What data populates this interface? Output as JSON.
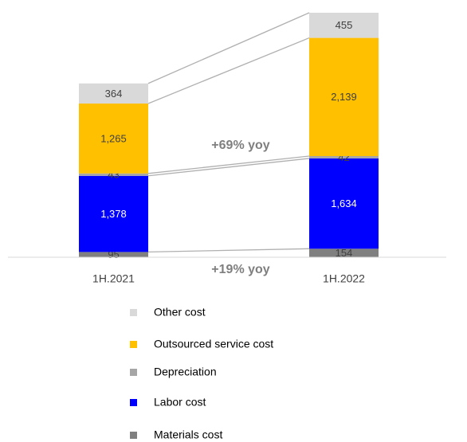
{
  "chart_data": {
    "type": "stacked_bar",
    "categories": [
      "1H.2021",
      "1H.2022"
    ],
    "series": [
      {
        "name": "Materials cost",
        "color": "#808080",
        "values": [
          95,
          154
        ],
        "value_labels": [
          "95",
          "154"
        ]
      },
      {
        "name": "Labor cost",
        "color": "#0000ff",
        "values": [
          1378,
          1634
        ],
        "value_labels": [
          "1,378",
          "1,634"
        ]
      },
      {
        "name": "Depreciation",
        "color": "#a6a6a6",
        "values": [
          43,
          42
        ],
        "value_labels": [
          "43",
          "42"
        ]
      },
      {
        "name": "Outsourced service cost",
        "color": "#ffc000",
        "values": [
          1265,
          2139
        ],
        "value_labels": [
          "1,265",
          "2,139"
        ]
      },
      {
        "name": "Other cost",
        "color": "#d9d9d9",
        "values": [
          364,
          455
        ],
        "value_labels": [
          "364",
          "455"
        ]
      }
    ],
    "annotations": [
      "+69% yoy",
      "+19% yoy"
    ]
  }
}
